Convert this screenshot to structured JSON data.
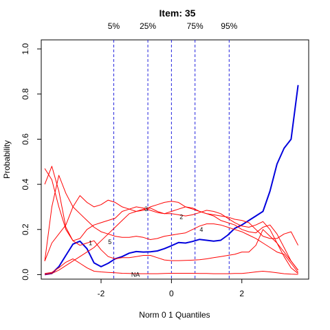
{
  "chart_data": {
    "type": "line",
    "title": "Item:  35",
    "xlabel": "Norm 0 1 Quantiles",
    "ylabel": "Probability",
    "xlim": [
      -3.7,
      3.9
    ],
    "ylim": [
      -0.02,
      1.04
    ],
    "xticks": [
      -2,
      0,
      2
    ],
    "yticks": [
      0.0,
      0.2,
      0.4,
      0.6,
      0.8,
      1.0
    ],
    "grid": false,
    "quantiles": [
      {
        "label": "5%",
        "x": -1.64
      },
      {
        "label": "25%",
        "x": -0.67
      },
      {
        "label": "",
        "x": 0.0
      },
      {
        "label": "75%",
        "x": 0.67
      },
      {
        "label": "95%",
        "x": 1.64
      }
    ],
    "x": [
      -3.6,
      -3.4,
      -3.2,
      -3.0,
      -2.8,
      -2.6,
      -2.4,
      -2.2,
      -2.0,
      -1.8,
      -1.6,
      -1.4,
      -1.2,
      -1.0,
      -0.8,
      -0.6,
      -0.4,
      -0.2,
      0.0,
      0.2,
      0.4,
      0.6,
      0.8,
      1.0,
      1.2,
      1.4,
      1.6,
      1.8,
      2.0,
      2.2,
      2.4,
      2.6,
      2.8,
      3.0,
      3.2,
      3.4,
      3.6
    ],
    "series": [
      {
        "name": "",
        "color": "#0000dd",
        "width": 2,
        "values": [
          0.0,
          0.005,
          0.035,
          0.085,
          0.135,
          0.148,
          0.115,
          0.052,
          0.035,
          0.05,
          0.07,
          0.08,
          0.095,
          0.102,
          0.1,
          0.101,
          0.105,
          0.115,
          0.128,
          0.142,
          0.14,
          0.147,
          0.156,
          0.152,
          0.148,
          0.152,
          0.175,
          0.205,
          0.22,
          0.24,
          0.26,
          0.28,
          0.37,
          0.49,
          0.56,
          0.6,
          0.84
        ]
      },
      {
        "name": "",
        "color": "#ff0000",
        "width": 1,
        "values": [
          0.47,
          0.42,
          0.3,
          0.2,
          0.15,
          0.16,
          0.2,
          0.22,
          0.23,
          0.24,
          0.25,
          0.28,
          0.29,
          0.3,
          0.295,
          0.285,
          0.275,
          0.27,
          0.28,
          0.29,
          0.3,
          0.295,
          0.28,
          0.27,
          0.26,
          0.24,
          0.23,
          0.22,
          0.2,
          0.19,
          0.185,
          0.21,
          0.22,
          0.18,
          0.12,
          0.06,
          0.02
        ]
      },
      {
        "name": "",
        "color": "#ff0000",
        "width": 1,
        "values": [
          0.0,
          0.005,
          0.02,
          0.04,
          0.06,
          0.08,
          0.1,
          0.12,
          0.15,
          0.18,
          0.21,
          0.24,
          0.27,
          0.28,
          0.29,
          0.295,
          0.28,
          0.27,
          0.27,
          0.265,
          0.26,
          0.265,
          0.275,
          0.285,
          0.28,
          0.27,
          0.25,
          0.23,
          0.215,
          0.21,
          0.22,
          0.235,
          0.2,
          0.14,
          0.08,
          0.03,
          0.005
        ]
      },
      {
        "name": "",
        "color": "#ff0000",
        "width": 1,
        "values": [
          0.06,
          0.3,
          0.44,
          0.36,
          0.3,
          0.27,
          0.24,
          0.21,
          0.19,
          0.18,
          0.17,
          0.165,
          0.165,
          0.17,
          0.165,
          0.155,
          0.16,
          0.17,
          0.175,
          0.18,
          0.185,
          0.2,
          0.215,
          0.225,
          0.225,
          0.22,
          0.21,
          0.2,
          0.19,
          0.175,
          0.16,
          0.14,
          0.12,
          0.1,
          0.09,
          0.05,
          0.01
        ]
      },
      {
        "name": "",
        "color": "#ff0000",
        "width": 1,
        "values": [
          0.06,
          0.14,
          0.18,
          0.22,
          0.3,
          0.35,
          0.32,
          0.3,
          0.31,
          0.33,
          0.32,
          0.3,
          0.29,
          0.28,
          0.285,
          0.3,
          0.31,
          0.32,
          0.325,
          0.32,
          0.3,
          0.29,
          0.28,
          0.27,
          0.265,
          0.26,
          0.255,
          0.245,
          0.24,
          0.23,
          0.2,
          0.17,
          0.16,
          0.16,
          0.18,
          0.19,
          0.13
        ]
      },
      {
        "name": "",
        "color": "#ff0000",
        "width": 1,
        "values": [
          0.4,
          0.48,
          0.37,
          0.21,
          0.15,
          0.13,
          0.14,
          0.15,
          0.11,
          0.08,
          0.07,
          0.075,
          0.075,
          0.08,
          0.085,
          0.085,
          0.075,
          0.065,
          0.062,
          0.062,
          0.063,
          0.064,
          0.066,
          0.07,
          0.075,
          0.08,
          0.085,
          0.09,
          0.1,
          0.1,
          0.13,
          0.2,
          0.17,
          0.14,
          0.1,
          0.06,
          0.02
        ]
      },
      {
        "name": "",
        "color": "#ff0000",
        "width": 1,
        "values": [
          0.005,
          0.01,
          0.03,
          0.055,
          0.07,
          0.05,
          0.03,
          0.015,
          0.012,
          0.01,
          0.008,
          0.006,
          0.005,
          0.004,
          0.004,
          0.004,
          0.004,
          0.005,
          0.006,
          0.006,
          0.006,
          0.006,
          0.005,
          0.005,
          0.004,
          0.004,
          0.004,
          0.005,
          0.005,
          0.008,
          0.012,
          0.015,
          0.012,
          0.008,
          0.004,
          0.002,
          0.001
        ]
      }
    ],
    "curve_labels": [
      {
        "text": "1",
        "x": -2.3,
        "y": 0.14
      },
      {
        "text": "5",
        "x": -1.75,
        "y": 0.145
      },
      {
        "text": "3",
        "x": -0.72,
        "y": 0.29
      },
      {
        "text": "2",
        "x": 0.28,
        "y": 0.255
      },
      {
        "text": "4",
        "x": 0.85,
        "y": 0.2
      },
      {
        "text": "NA",
        "x": -1.02,
        "y": 0.0
      }
    ]
  }
}
